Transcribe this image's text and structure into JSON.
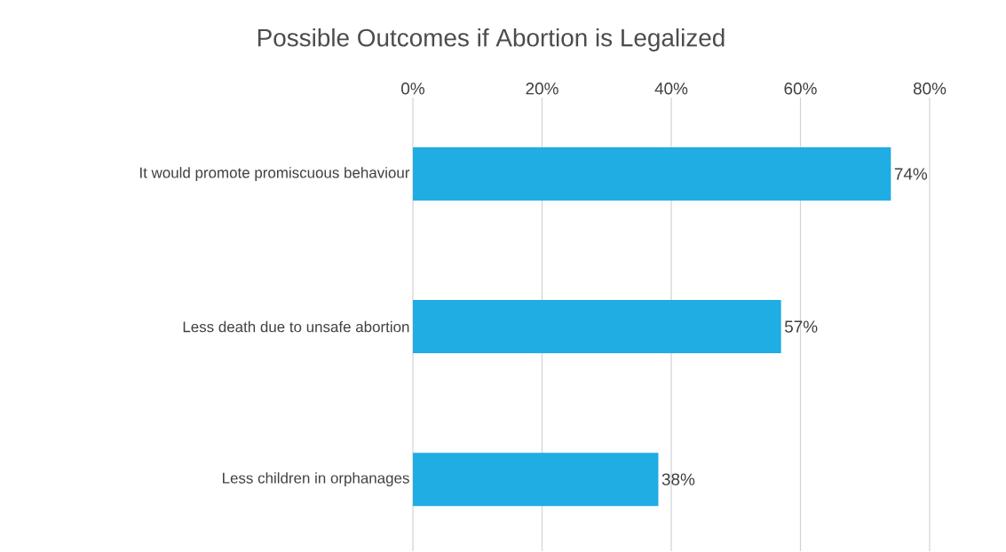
{
  "chart_data": {
    "type": "bar",
    "orientation": "horizontal",
    "title": "Possible Outcomes if Abortion is Legalized",
    "categories": [
      "It would promote promiscuous behaviour",
      "Less death due to unsafe abortion",
      "Less children in orphanages"
    ],
    "values": [
      74,
      57,
      38
    ],
    "value_labels": [
      "74%",
      "57%",
      "38%"
    ],
    "color": "#1fade3",
    "xlim": [
      0,
      80
    ],
    "xticks": [
      {
        "value": 0,
        "label": "0%"
      },
      {
        "value": 20,
        "label": "20%"
      },
      {
        "value": 40,
        "label": "40%"
      },
      {
        "value": 60,
        "label": "60%"
      },
      {
        "value": 80,
        "label": "80%"
      }
    ],
    "grid": "x"
  }
}
